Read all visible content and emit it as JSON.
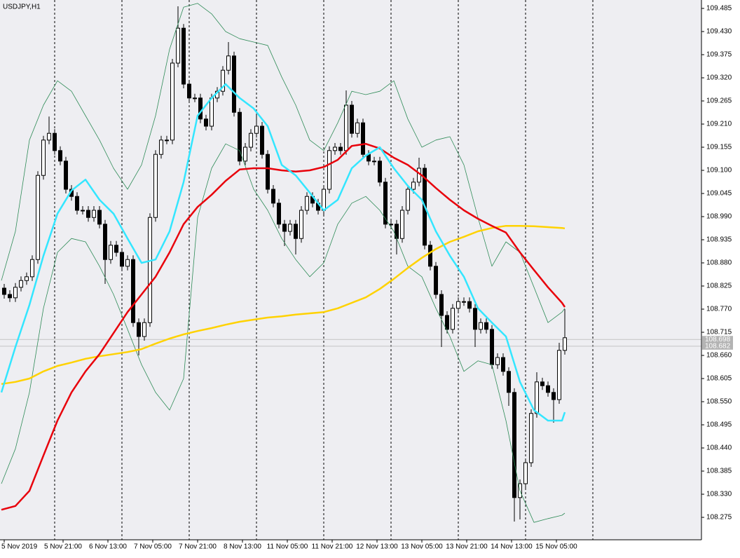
{
  "chart_data": {
    "type": "candlestick",
    "title": "USDJPY,H1",
    "xlim": [
      -1.5,
      248.75
    ],
    "ylim": [
      108.2217,
      109.505
    ],
    "xticks": [
      {
        "value": 0,
        "label": "5 Nov 2019"
      },
      {
        "value": 21,
        "label": "5 Nov 21:00"
      },
      {
        "value": 37,
        "label": "6 Nov 13:00"
      },
      {
        "value": 53,
        "label": "7 Nov 05:00"
      },
      {
        "value": 69,
        "label": "7 Nov 21:00"
      },
      {
        "value": 85,
        "label": "8 Nov 13:00"
      },
      {
        "value": 101,
        "label": "11 Nov 05:00"
      },
      {
        "value": 117,
        "label": "11 Nov 21:00"
      },
      {
        "value": 133,
        "label": "12 Nov 13:00"
      },
      {
        "value": 149,
        "label": "13 Nov 05:00"
      },
      {
        "value": 165,
        "label": "13 Nov 21:00"
      },
      {
        "value": 181,
        "label": "14 Nov 13:00"
      },
      {
        "value": 197,
        "label": "15 Nov 05:00"
      }
    ],
    "xgrid": [
      18,
      42,
      66,
      90,
      114,
      138,
      162,
      186,
      210
    ],
    "yticks": [
      109.485,
      {
        "value": 109.43,
        "label": "109.430"
      },
      109.375,
      {
        "value": 109.32,
        "label": "109.320"
      },
      109.265,
      {
        "value": 109.21,
        "label": "109.210"
      },
      109.155,
      {
        "value": 109.1,
        "label": "109.100"
      },
      109.045,
      {
        "value": 108.99,
        "label": "108.990"
      },
      108.935,
      {
        "value": 108.88,
        "label": "108.880"
      },
      108.825,
      {
        "value": 108.77,
        "label": "108.770"
      },
      108.715,
      {
        "value": 108.66,
        "label": "108.660"
      },
      108.605,
      {
        "value": 108.55,
        "label": "108.550"
      },
      108.495,
      {
        "value": 108.44,
        "label": "108.440"
      },
      108.385,
      {
        "value": 108.33,
        "label": "108.330"
      },
      108.275
    ],
    "price_lines": [
      108.698,
      108.682
    ],
    "candles": {
      "x": [
        0,
        2,
        4,
        6,
        8,
        10,
        12,
        14,
        16,
        18,
        20,
        22,
        24,
        26,
        28,
        30,
        32,
        34,
        36,
        38,
        40,
        42,
        44,
        46,
        48,
        50,
        52,
        54,
        56,
        58,
        60,
        62,
        64,
        66,
        68,
        70,
        72,
        74,
        76,
        78,
        80,
        82,
        84,
        86,
        88,
        90,
        92,
        94,
        96,
        98,
        100,
        102,
        104,
        106,
        108,
        110,
        112,
        114,
        116,
        118,
        120,
        122,
        124,
        126,
        128,
        130,
        132,
        134,
        136,
        138,
        140,
        142,
        144,
        146,
        148,
        150,
        152,
        154,
        156,
        158,
        160,
        162,
        164,
        166,
        168,
        170,
        172,
        174,
        176,
        178,
        180,
        182,
        184,
        186,
        188,
        190,
        192,
        194,
        196,
        198,
        200
      ],
      "open": [
        108.82,
        108.805,
        108.797,
        108.822,
        108.838,
        108.847,
        108.888,
        109.088,
        109.172,
        109.188,
        109.147,
        109.122,
        109.055,
        109.038,
        109.005,
        109.005,
        108.988,
        109.005,
        108.972,
        108.888,
        108.922,
        108.905,
        108.872,
        108.888,
        108.738,
        108.705,
        108.738,
        108.988,
        109.138,
        109.172,
        109.172,
        109.355,
        109.438,
        109.305,
        109.272,
        109.272,
        109.222,
        109.205,
        109.272,
        109.288,
        109.338,
        109.372,
        109.238,
        109.122,
        109.155,
        109.188,
        109.205,
        109.138,
        109.055,
        109.022,
        108.972,
        108.955,
        108.972,
        108.938,
        109.005,
        109.038,
        109.022,
        109.005,
        109.055,
        109.147,
        109.155,
        109.147,
        109.255,
        109.188,
        109.213,
        109.138,
        109.122,
        109.122,
        109.072,
        108.972,
        108.972,
        108.938,
        109.005,
        109.055,
        109.072,
        109.105,
        108.922,
        108.872,
        108.805,
        108.755,
        108.722,
        108.772,
        108.788,
        108.788,
        108.772,
        108.722,
        108.738,
        108.722,
        108.638,
        108.655,
        108.622,
        108.572,
        108.322,
        108.355,
        108.405,
        108.522,
        108.597,
        108.588,
        108.572,
        108.555,
        108.672
      ],
      "high": [
        108.83,
        108.815,
        108.832,
        108.848,
        108.857,
        108.898,
        109.098,
        109.182,
        109.228,
        109.198,
        109.157,
        109.132,
        109.065,
        109.048,
        109.015,
        109.015,
        109.015,
        109.015,
        108.982,
        108.932,
        108.932,
        108.915,
        108.898,
        108.898,
        108.748,
        108.748,
        108.998,
        109.148,
        109.182,
        109.182,
        109.365,
        109.49,
        109.448,
        109.315,
        109.282,
        109.282,
        109.232,
        109.282,
        109.298,
        109.348,
        109.405,
        109.382,
        109.248,
        109.165,
        109.198,
        109.23,
        109.215,
        109.148,
        109.065,
        109.032,
        108.982,
        108.982,
        108.982,
        109.015,
        109.048,
        109.048,
        109.032,
        109.065,
        109.157,
        109.165,
        109.165,
        109.29,
        109.265,
        109.223,
        109.223,
        109.148,
        109.132,
        109.132,
        109.082,
        108.982,
        108.982,
        109.015,
        109.065,
        109.082,
        109.13,
        109.115,
        108.932,
        108.882,
        108.815,
        108.765,
        108.782,
        108.798,
        108.798,
        108.798,
        108.782,
        108.748,
        108.748,
        108.732,
        108.665,
        108.665,
        108.632,
        108.582,
        108.365,
        108.415,
        108.532,
        108.62,
        108.607,
        108.598,
        108.582,
        108.69,
        108.77
      ],
      "low": [
        108.795,
        108.787,
        108.787,
        108.812,
        108.828,
        108.837,
        108.878,
        109.078,
        109.162,
        109.137,
        109.112,
        109.045,
        109.028,
        108.995,
        108.995,
        108.978,
        108.978,
        108.962,
        108.83,
        108.878,
        108.895,
        108.862,
        108.862,
        108.728,
        108.66,
        108.695,
        108.728,
        108.978,
        109.128,
        109.162,
        109.162,
        109.345,
        109.295,
        109.262,
        109.262,
        109.212,
        109.195,
        109.195,
        109.262,
        109.278,
        109.328,
        109.228,
        109.112,
        109.112,
        109.145,
        109.178,
        109.128,
        109.045,
        109.012,
        108.962,
        108.92,
        108.945,
        108.9,
        108.928,
        108.995,
        109.012,
        108.995,
        108.995,
        109.045,
        109.137,
        109.137,
        109.137,
        109.178,
        109.178,
        109.128,
        109.112,
        109.112,
        109.062,
        108.962,
        108.962,
        108.9,
        108.928,
        108.995,
        109.045,
        109.062,
        108.912,
        108.862,
        108.795,
        108.68,
        108.712,
        108.712,
        108.762,
        108.778,
        108.762,
        108.68,
        108.712,
        108.712,
        108.628,
        108.628,
        108.612,
        108.54,
        108.265,
        108.27,
        108.345,
        108.395,
        108.512,
        108.578,
        108.562,
        108.5,
        108.545,
        108.662
      ],
      "close": [
        108.805,
        108.797,
        108.822,
        108.838,
        108.847,
        108.888,
        109.088,
        109.172,
        109.188,
        109.147,
        109.122,
        109.055,
        109.038,
        109.005,
        109.005,
        108.988,
        109.005,
        108.972,
        108.888,
        108.922,
        108.905,
        108.872,
        108.888,
        108.738,
        108.705,
        108.738,
        108.988,
        109.138,
        109.172,
        109.172,
        109.355,
        109.438,
        109.305,
        109.272,
        109.272,
        109.222,
        109.205,
        109.272,
        109.288,
        109.338,
        109.372,
        109.238,
        109.122,
        109.155,
        109.188,
        109.205,
        109.138,
        109.055,
        109.022,
        108.972,
        108.955,
        108.972,
        108.938,
        109.005,
        109.038,
        109.022,
        109.005,
        109.055,
        109.147,
        109.155,
        109.147,
        109.255,
        109.188,
        109.213,
        109.138,
        109.122,
        109.122,
        109.072,
        108.972,
        108.972,
        108.938,
        109.005,
        109.055,
        109.072,
        109.105,
        108.922,
        108.872,
        108.805,
        108.755,
        108.722,
        108.772,
        108.788,
        108.788,
        108.772,
        108.722,
        108.738,
        108.722,
        108.638,
        108.655,
        108.622,
        108.572,
        108.322,
        108.355,
        108.405,
        108.522,
        108.597,
        108.588,
        108.572,
        108.555,
        108.672,
        108.702
      ]
    },
    "lines": {
      "x": [
        -1,
        4,
        9,
        14,
        19,
        24,
        29,
        34,
        39,
        44,
        49,
        54,
        59,
        64,
        69,
        74,
        79,
        84,
        89,
        94,
        99,
        104,
        109,
        114,
        119,
        124,
        129,
        134,
        139,
        144,
        149,
        154,
        159,
        164,
        169,
        174,
        179,
        184,
        189,
        194,
        199,
        200
      ],
      "series": [
        {
          "color": "#2e8b57",
          "width": 0.8,
          "values": [
            108.838,
            108.955,
            109.172,
            109.255,
            109.313,
            109.288,
            109.23,
            109.172,
            109.105,
            109.055,
            109.113,
            109.23,
            109.388,
            109.488,
            109.497,
            109.472,
            109.43,
            109.413,
            109.405,
            109.397,
            109.322,
            109.255,
            109.172,
            109.147,
            109.213,
            109.288,
            109.28,
            109.288,
            109.313,
            109.222,
            109.155,
            109.172,
            109.18,
            109.113,
            108.988,
            108.872,
            108.93,
            108.905,
            108.822,
            108.738,
            108.763,
            108.772
          ]
        },
        {
          "color": "#2e8b57",
          "width": 0.8,
          "values": [
            108.355,
            108.438,
            108.572,
            108.772,
            108.905,
            108.938,
            108.93,
            108.872,
            108.805,
            108.722,
            108.638,
            108.572,
            108.53,
            108.605,
            108.988,
            109.105,
            109.163,
            109.147,
            109.055,
            109.005,
            108.938,
            108.888,
            108.847,
            108.88,
            108.972,
            109.022,
            109.038,
            109.005,
            108.955,
            108.872,
            108.847,
            108.772,
            108.705,
            108.622,
            108.647,
            108.638,
            108.505,
            108.338,
            108.263,
            108.272,
            108.28,
            108.285
          ]
        },
        {
          "color": "#ffd200",
          "width": 2.5,
          "values": [
            108.592,
            108.597,
            108.605,
            108.622,
            108.635,
            108.643,
            108.652,
            108.658,
            108.663,
            108.668,
            108.675,
            108.688,
            108.7,
            108.71,
            108.718,
            108.725,
            108.733,
            108.74,
            108.745,
            108.75,
            108.753,
            108.757,
            108.76,
            108.763,
            108.772,
            108.785,
            108.798,
            108.818,
            108.842,
            108.868,
            108.892,
            108.913,
            108.93,
            108.942,
            108.955,
            108.963,
            108.968,
            108.968,
            108.967,
            108.965,
            108.963,
            108.962
          ]
        },
        {
          "color": "#e8000b",
          "width": 2.5,
          "values": [
            108.293,
            108.302,
            108.338,
            108.422,
            108.505,
            108.572,
            108.622,
            108.663,
            108.713,
            108.763,
            108.805,
            108.847,
            108.905,
            108.972,
            109.013,
            109.042,
            109.075,
            109.102,
            109.105,
            109.105,
            109.1,
            109.097,
            109.1,
            109.108,
            109.125,
            109.158,
            109.163,
            109.152,
            109.13,
            109.113,
            109.088,
            109.058,
            109.03,
            109.005,
            108.985,
            108.968,
            108.952,
            108.905,
            108.863,
            108.822,
            108.785,
            108.775
          ]
        },
        {
          "color": "#33e6ff",
          "width": 2.5,
          "values": [
            108.572,
            108.68,
            108.78,
            108.897,
            108.997,
            109.052,
            109.078,
            109.03,
            108.997,
            108.938,
            108.88,
            108.888,
            108.955,
            109.072,
            109.23,
            109.272,
            109.305,
            109.272,
            109.247,
            109.205,
            109.113,
            109.088,
            109.047,
            109.005,
            109.03,
            109.105,
            109.135,
            109.155,
            109.105,
            109.063,
            109.03,
            108.955,
            108.897,
            108.847,
            108.772,
            108.738,
            108.705,
            108.597,
            108.53,
            108.505,
            108.505,
            108.525
          ]
        }
      ]
    }
  }
}
